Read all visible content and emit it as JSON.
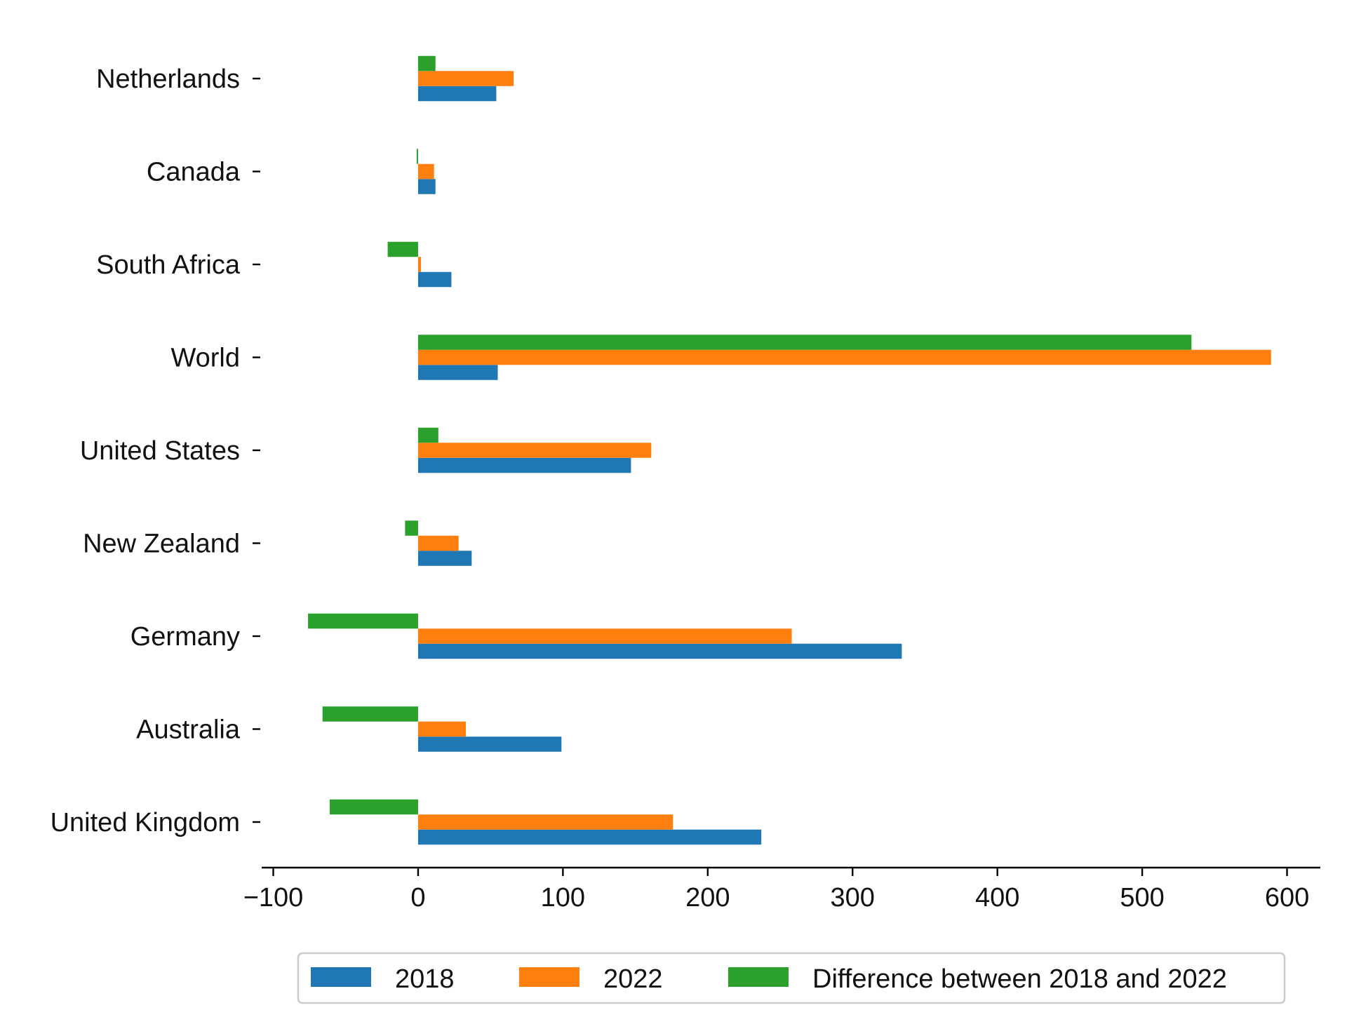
{
  "chart_data": {
    "type": "bar",
    "orientation": "horizontal",
    "categories": [
      "United Kingdom",
      "Australia",
      "Germany",
      "New Zealand",
      "United States",
      "World",
      "South Africa",
      "Canada",
      "Netherlands"
    ],
    "series": [
      {
        "name": "2018",
        "color": "#1f77b4",
        "values": [
          237,
          99,
          334,
          37,
          147,
          55,
          23,
          12,
          54
        ]
      },
      {
        "name": "2022",
        "color": "#ff7f0e",
        "values": [
          176,
          33,
          258,
          28,
          161,
          589,
          2,
          11,
          66
        ]
      },
      {
        "name": "Difference between 2018 and 2022",
        "color": "#2ca02c",
        "values": [
          -61,
          -66,
          -76,
          -9,
          14,
          534,
          -21,
          -1,
          12
        ]
      }
    ],
    "xlim": [
      -108,
      623
    ],
    "xticks": [
      -100,
      0,
      100,
      200,
      300,
      400,
      500,
      600
    ],
    "xtick_labels": [
      "−100",
      "0",
      "100",
      "200",
      "300",
      "400",
      "500",
      "600"
    ],
    "title": "",
    "xlabel": "",
    "ylabel": "",
    "grid": false,
    "legend": {
      "placement": "bottom-center",
      "columns": 3
    }
  }
}
